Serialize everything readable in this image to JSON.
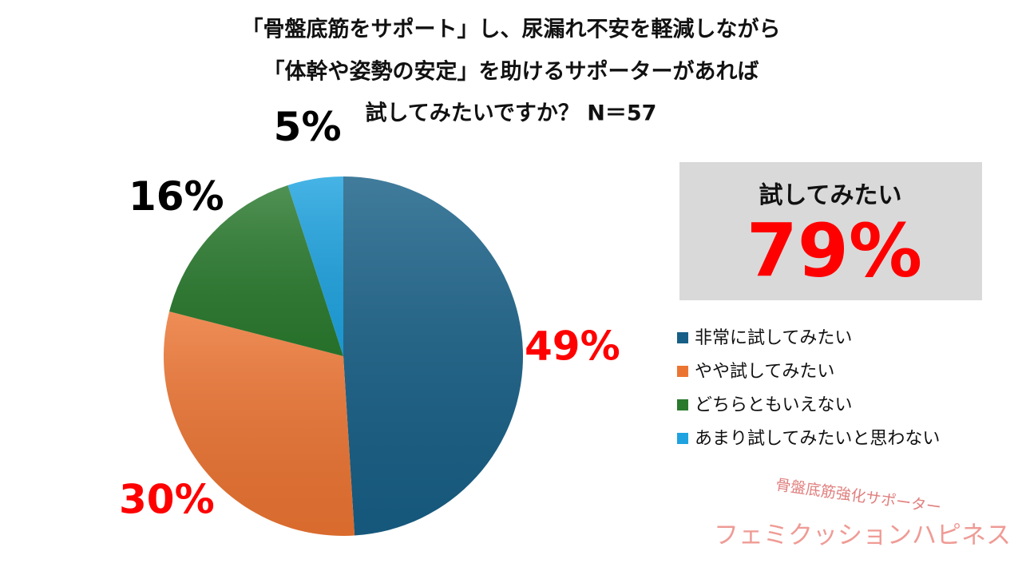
{
  "chart_data": {
    "type": "pie",
    "title": [
      "「骨盤底筋をサポート」し、尿漏れ不安を軽減しながら",
      "「体幹や姿勢の安定」を助けるサポーターがあれば",
      "試してみたいですか？ N＝57"
    ],
    "categories": [
      "非常に試してみたい",
      "やや試してみたい",
      "どちらともいえない",
      "あまり試してみたいと思わない"
    ],
    "values": [
      49,
      30,
      16,
      5
    ],
    "value_labels": [
      "49%",
      "30%",
      "16%",
      "5%"
    ],
    "colors": [
      "#175f86",
      "#ec7432",
      "#2a7a2e",
      "#1ea3e0"
    ],
    "label_colors": [
      "#ff0000",
      "#ff0000",
      "#000000",
      "#000000"
    ],
    "annotations": [
      "試してみたい",
      "79%"
    ]
  },
  "brand": {
    "tagline": "骨盤底筋強化サポーター",
    "name": "フェミクッションハピネス"
  }
}
